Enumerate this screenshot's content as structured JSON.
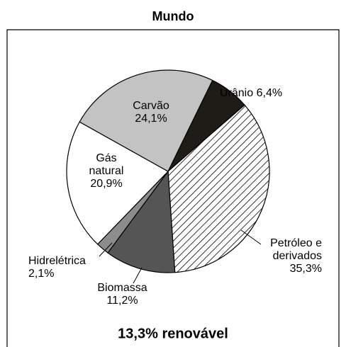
{
  "chart_data": {
    "type": "pie",
    "title": "Mundo",
    "categories": [
      "Urânio",
      "Petróleo e derivados",
      "Biomassa",
      "Hidrelétrica",
      "Gás natural",
      "Carvão"
    ],
    "values": [
      6.4,
      35.3,
      11.2,
      2.1,
      20.9,
      24.1
    ],
    "value_labels": [
      "6,4%",
      "35,3%",
      "11,2%",
      "2,1%",
      "20,9%",
      "24,1%"
    ],
    "colors": [
      "#1f1b17",
      "hatch",
      "#555555",
      "#8c8c8c",
      "#ffffff",
      "#c3c3c3"
    ],
    "annotation": "13,3% renovável"
  }
}
